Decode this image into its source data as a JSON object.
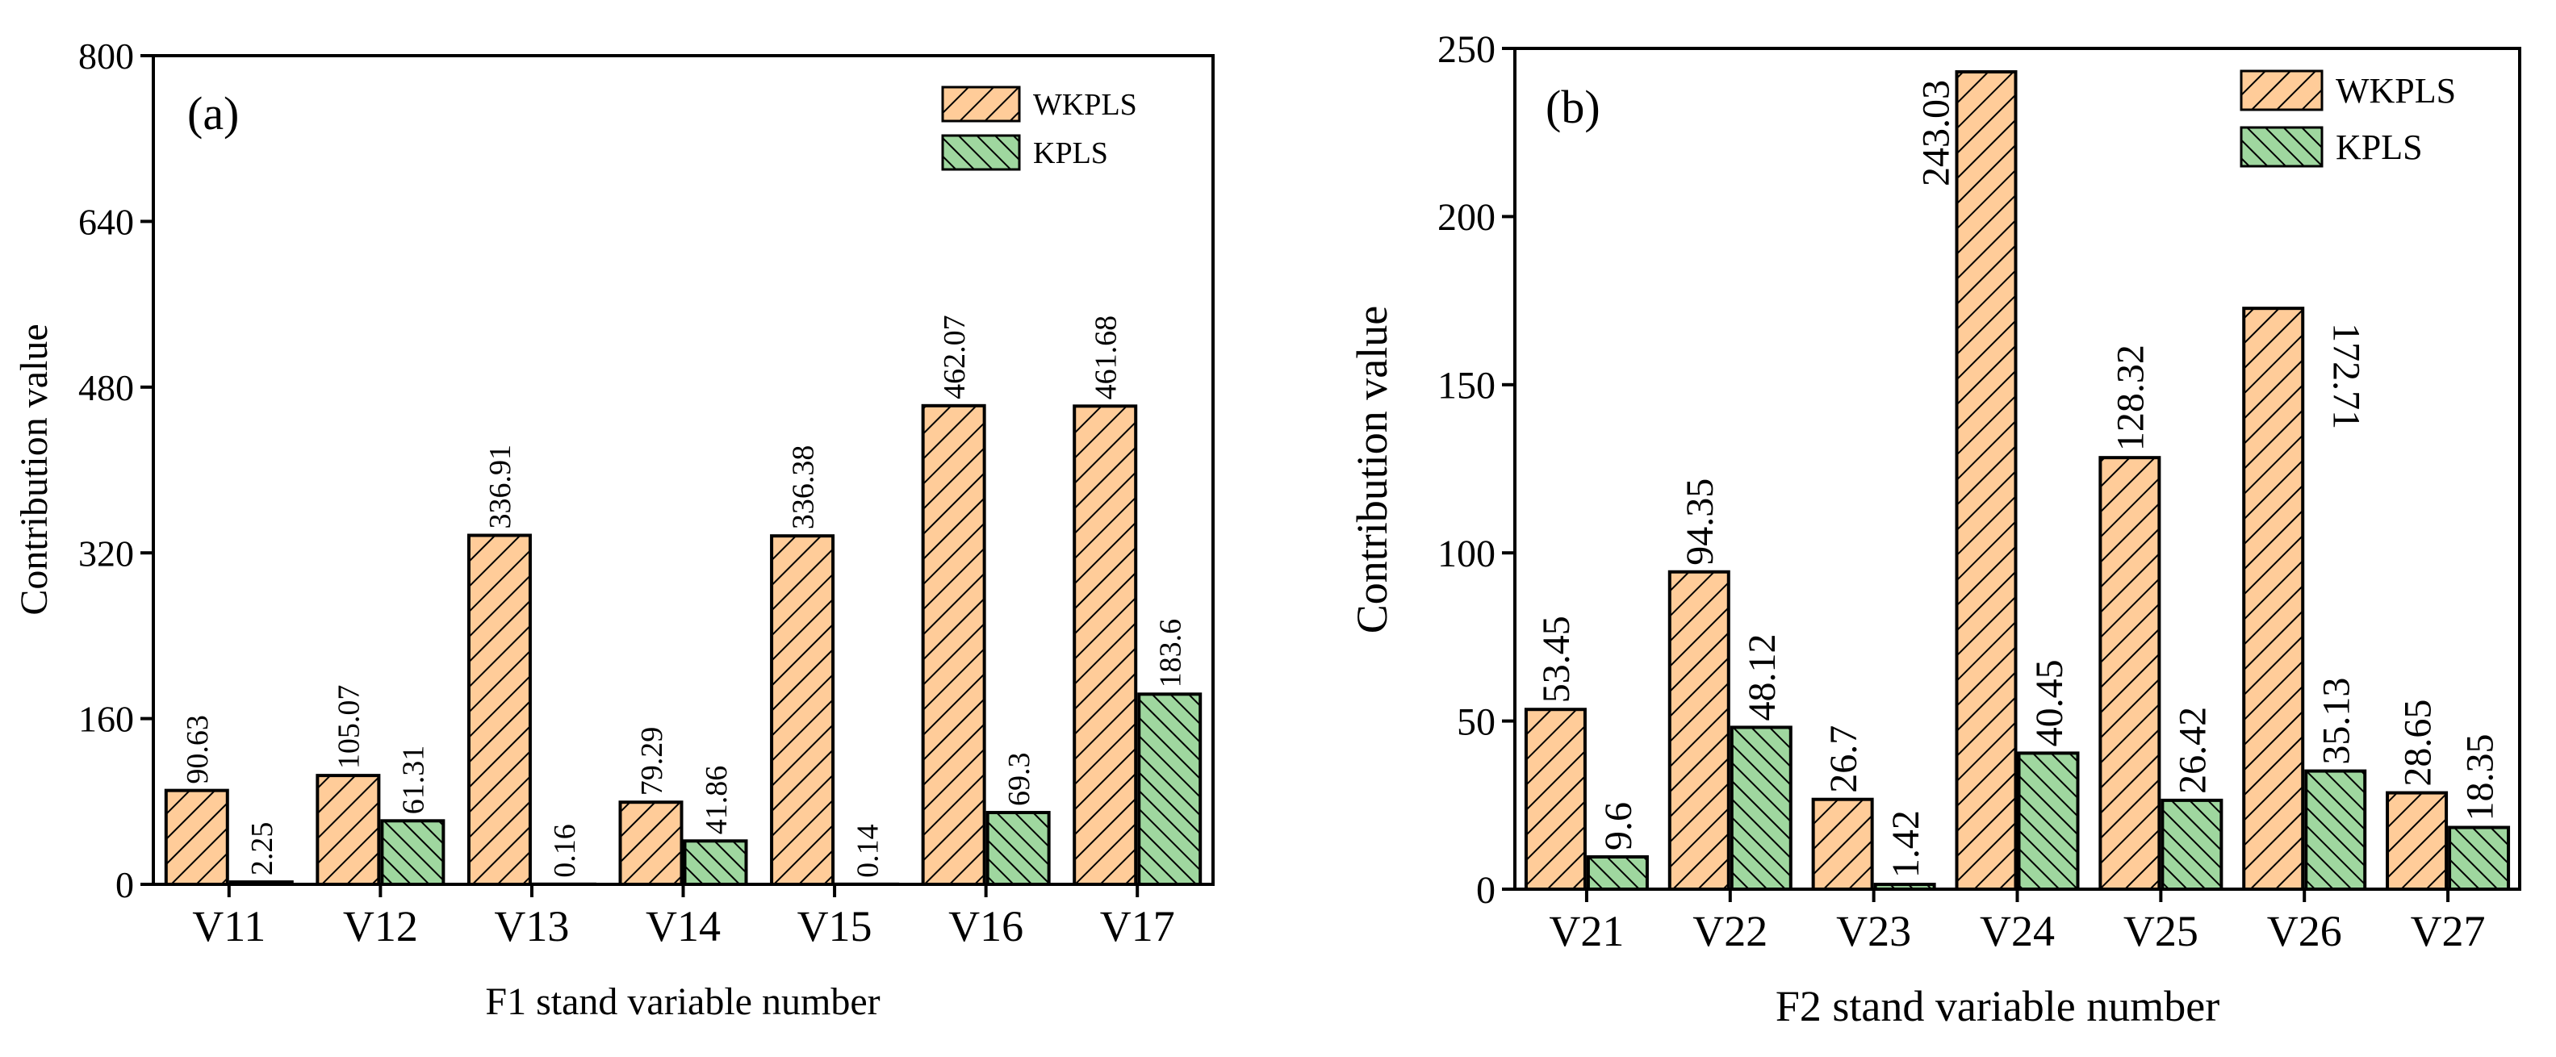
{
  "colors": {
    "wkpls_fill": "#FFCC99",
    "kpls_fill": "#9FD79F",
    "stroke": "#000000"
  },
  "chart_data": [
    {
      "type": "bar",
      "panel_label": "(a)",
      "title": "",
      "xlabel": "F1 stand variable number",
      "ylabel": "Contribution value",
      "ylim": [
        0,
        800
      ],
      "yticks": [
        "0",
        "160",
        "320",
        "480",
        "640",
        "800"
      ],
      "categories": [
        "V11",
        "V12",
        "V13",
        "V14",
        "V15",
        "V16",
        "V17"
      ],
      "legend_position": "top-right",
      "series": [
        {
          "name": "WKPLS",
          "values": [
            90.63,
            105.07,
            336.91,
            79.29,
            336.38,
            462.07,
            461.68
          ],
          "labels": [
            "90.63",
            "105.07",
            "336.91",
            "79.29",
            "336.38",
            "462.07",
            "461.68"
          ]
        },
        {
          "name": "KPLS",
          "values": [
            2.25,
            61.31,
            0.16,
            41.86,
            0.14,
            69.3,
            183.6
          ],
          "labels": [
            "2.25",
            "61.31",
            "0.16",
            "41.86",
            "0.14",
            "69.3",
            "183.6"
          ]
        }
      ]
    },
    {
      "type": "bar",
      "panel_label": "(b)",
      "title": "",
      "xlabel": "F2 stand variable number",
      "ylabel": "Contribution value",
      "ylim": [
        0,
        250
      ],
      "yticks": [
        "0",
        "50",
        "100",
        "150",
        "200",
        "250"
      ],
      "categories": [
        "V21",
        "V22",
        "V23",
        "V24",
        "V25",
        "V26",
        "V27"
      ],
      "legend_position": "top-right",
      "series": [
        {
          "name": "WKPLS",
          "values": [
            53.45,
            94.35,
            26.7,
            243.03,
            128.32,
            172.71,
            28.65
          ],
          "labels": [
            "53.45",
            "94.35",
            "26.7",
            "243.03",
            "128.32",
            "172.71",
            "28.65"
          ]
        },
        {
          "name": "KPLS",
          "values": [
            9.6,
            48.12,
            1.42,
            40.45,
            26.42,
            35.13,
            18.35
          ],
          "labels": [
            "9.6",
            "48.12",
            "1.42",
            "40.45",
            "26.42",
            "35.13",
            "18.35"
          ]
        }
      ]
    }
  ]
}
